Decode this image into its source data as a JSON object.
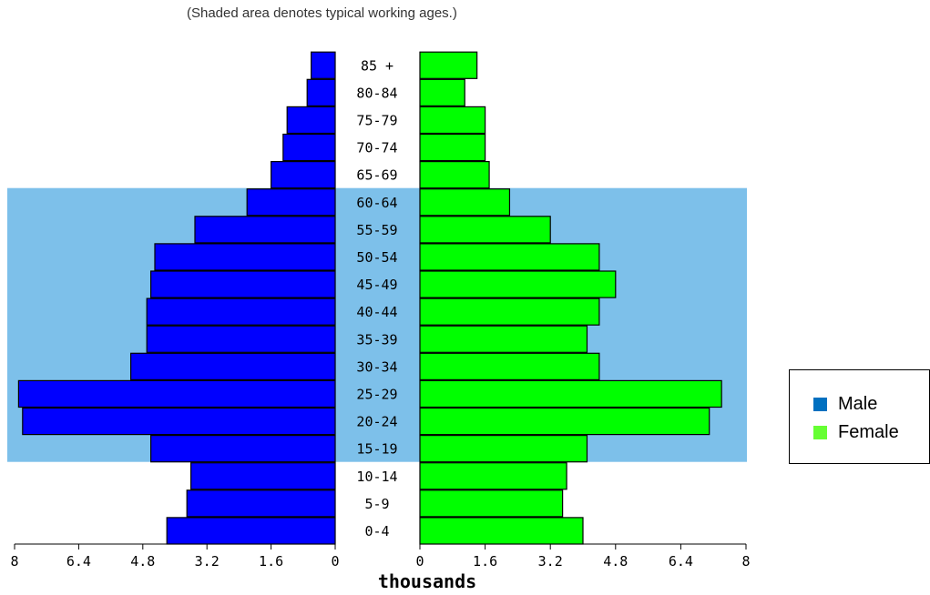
{
  "chart_data": {
    "type": "bar",
    "subtitle": "(Shaded area denotes typical working ages.)",
    "xlabel": "thousands",
    "categories": [
      "0-4",
      "5-9",
      "10-14",
      "15-19",
      "20-24",
      "25-29",
      "30-34",
      "35-39",
      "40-44",
      "45-49",
      "50-54",
      "55-59",
      "60-64",
      "65-69",
      "70-74",
      "75-79",
      "80-84",
      "85 +"
    ],
    "series": [
      {
        "name": "Male",
        "color": "#0000ff",
        "values": [
          4.2,
          3.7,
          3.6,
          4.6,
          7.8,
          7.9,
          5.1,
          4.7,
          4.7,
          4.6,
          4.5,
          3.5,
          2.2,
          1.6,
          1.3,
          1.2,
          0.7,
          0.6
        ]
      },
      {
        "name": "Female",
        "color": "#00ff00",
        "values": [
          4.0,
          3.5,
          3.6,
          4.1,
          7.1,
          7.4,
          4.4,
          4.1,
          4.4,
          4.8,
          4.4,
          3.2,
          2.2,
          1.7,
          1.6,
          1.6,
          1.1,
          1.4
        ]
      }
    ],
    "shaded_range": [
      "15-19",
      "60-64"
    ],
    "shade_color": "#7dc0ea",
    "xlim": [
      0,
      8
    ],
    "xticks": [
      "8",
      "6.4",
      "4.8",
      "3.2",
      "1.6",
      "0",
      "0",
      "1.6",
      "3.2",
      "4.8",
      "6.4",
      "8"
    ],
    "legend": {
      "position": "right",
      "items": [
        "Male",
        "Female"
      ],
      "colors": [
        "#0070c0",
        "#66ff33"
      ]
    }
  }
}
